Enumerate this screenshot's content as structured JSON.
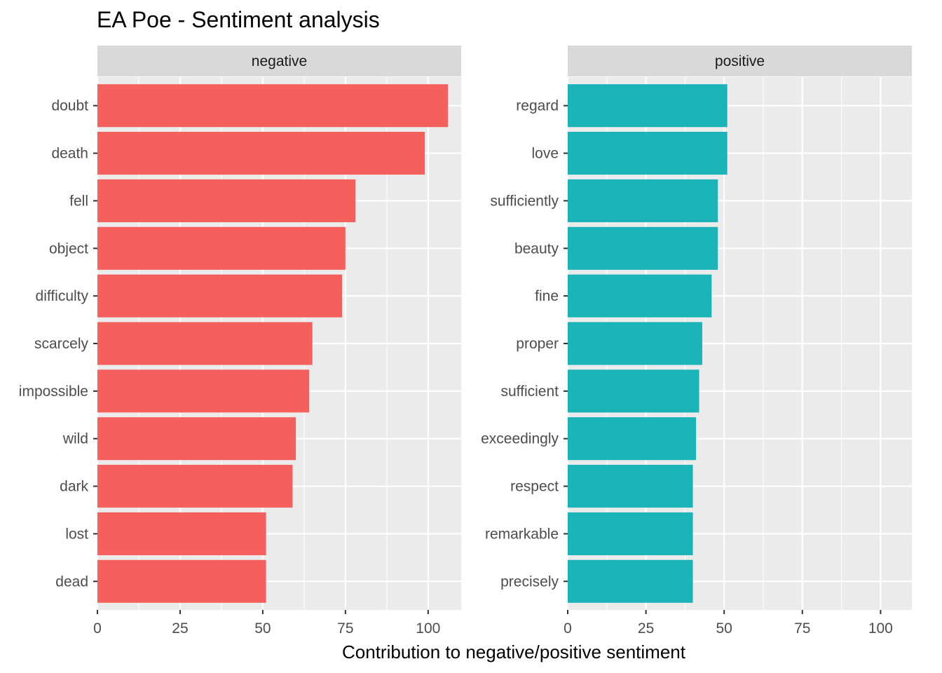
{
  "chart_data": {
    "type": "bar",
    "orientation": "horizontal",
    "title": "EA Poe - Sentiment analysis",
    "xlabel": "Contribution to negative/positive sentiment",
    "ylabel": "",
    "xlim": [
      0,
      110
    ],
    "x_ticks": [
      0,
      25,
      50,
      75,
      100
    ],
    "grid": true,
    "legend": "none",
    "facets": [
      {
        "name": "negative",
        "color": "#F5605D",
        "categories": [
          "doubt",
          "death",
          "fell",
          "object",
          "difficulty",
          "scarcely",
          "impossible",
          "wild",
          "dark",
          "lost",
          "dead"
        ],
        "values": [
          106,
          99,
          78,
          75,
          74,
          65,
          64,
          60,
          59,
          51,
          51
        ]
      },
      {
        "name": "positive",
        "color": "#19B3B8",
        "categories": [
          "regard",
          "love",
          "sufficiently",
          "beauty",
          "fine",
          "proper",
          "sufficient",
          "exceedingly",
          "respect",
          "remarkable",
          "precisely"
        ],
        "values": [
          51,
          51,
          48,
          48,
          46,
          43,
          42,
          41,
          40,
          40,
          40
        ]
      }
    ]
  }
}
